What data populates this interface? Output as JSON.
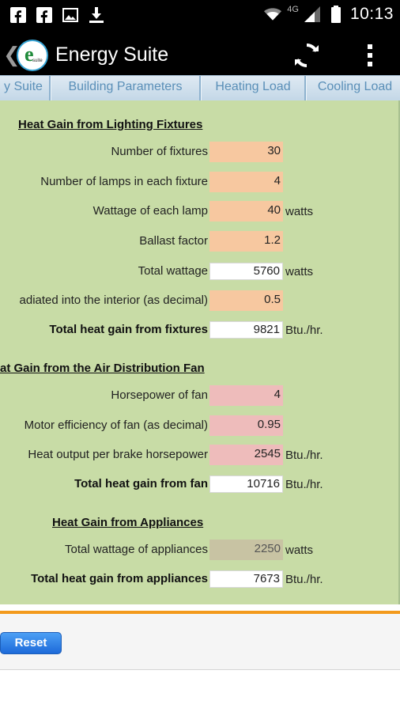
{
  "status_bar": {
    "network_label": "4G",
    "time": "10:13",
    "icons": [
      "facebook-icon",
      "facebook-icon",
      "image-icon",
      "download-icon",
      "wifi-icon",
      "signal-icon",
      "battery-icon"
    ]
  },
  "action_bar": {
    "title": "Energy Suite",
    "logo_letter": "e",
    "logo_text": "suite",
    "actions": [
      "refresh-icon",
      "overflow-menu-icon"
    ]
  },
  "tabs": [
    {
      "label": "y Suite"
    },
    {
      "label": "Building Parameters"
    },
    {
      "label": "Heating Load"
    },
    {
      "label": "Cooling Load"
    }
  ],
  "sections": {
    "lighting": {
      "title": "Heat Gain from Lighting Fixtures",
      "rows": [
        {
          "label": "Number of fixtures",
          "value": "30",
          "unit": ""
        },
        {
          "label": "Number of lamps in each fixture",
          "value": "4",
          "unit": ""
        },
        {
          "label": "Wattage of each lamp",
          "value": "40",
          "unit": "watts"
        },
        {
          "label": "Ballast factor",
          "value": "1.2",
          "unit": ""
        },
        {
          "label": "Total wattage",
          "value": "5760",
          "unit": "watts"
        },
        {
          "label": "adiated into the interior (as decimal)",
          "value": "0.5",
          "unit": ""
        },
        {
          "label": "Total heat gain from fixtures",
          "value": "9821",
          "unit": "Btu./hr."
        }
      ]
    },
    "fan": {
      "title": "at Gain from the Air Distribution Fan",
      "rows": [
        {
          "label": "Horsepower of fan",
          "value": "4",
          "unit": ""
        },
        {
          "label": "Motor efficiency of fan (as decimal)",
          "value": "0.95",
          "unit": ""
        },
        {
          "label": "Heat output per brake horsepower",
          "value": "2545",
          "unit": "Btu./hr."
        },
        {
          "label": "Total heat gain from fan",
          "value": "10716",
          "unit": "Btu./hr."
        }
      ]
    },
    "appliances": {
      "title": "Heat Gain from Appliances",
      "rows": [
        {
          "label": "Total wattage of appliances",
          "value": "2250",
          "unit": "watts"
        },
        {
          "label": "Total heat gain from appliances",
          "value": "7673",
          "unit": "Btu./hr."
        }
      ]
    }
  },
  "footer": {
    "reset_label": "Reset"
  },
  "colors": {
    "panel_bg": "#c8dca6",
    "input_orange": "#f7c8a0",
    "input_pink": "#eebcbb",
    "input_tan": "#c8c3a3",
    "accent_orange": "#f39a1c",
    "button_blue": "#1d6ad9"
  }
}
